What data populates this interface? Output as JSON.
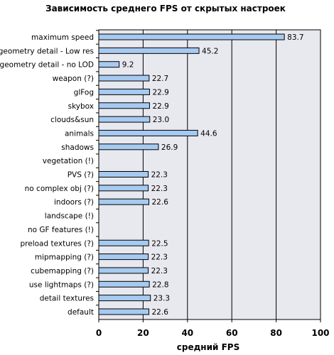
{
  "chart_data": {
    "type": "bar",
    "orientation": "horizontal",
    "title": "Зависимость среднего FPS от скрытых настроек",
    "xlabel": "средний FPS",
    "ylabel": "",
    "xlim": [
      0,
      100
    ],
    "x_ticks": [
      "0",
      "20",
      "40",
      "60",
      "80",
      "100"
    ],
    "grid": "vertical gridlines at major ticks",
    "legend": "none",
    "categories": [
      "maximum speed",
      "geometry detail - Low res",
      "geometry detail - no LOD",
      "weapon (?)",
      "glFog",
      "skybox",
      "clouds&sun",
      "animals",
      "shadows",
      "vegetation (!)",
      "PVS (?)",
      "no complex obj (?)",
      "indoors (?)",
      "landscape (!)",
      "no GF features (!)",
      "preload textures (?)",
      "mipmapping (?)",
      "cubemapping (?)",
      "use lightmaps (?)",
      "detail textures",
      "default"
    ],
    "values": [
      83.7,
      45.2,
      9.2,
      22.7,
      22.9,
      22.9,
      23.0,
      44.6,
      26.9,
      null,
      22.3,
      22.3,
      22.6,
      null,
      null,
      22.5,
      22.3,
      22.3,
      22.8,
      23.3,
      22.6
    ],
    "value_labels": [
      "83.7",
      "45.2",
      "9.2",
      "22.7",
      "22.9",
      "22.9",
      "23.0",
      "44.6",
      "26.9",
      "",
      "22.3",
      "22.3",
      "22.6",
      "",
      "",
      "22.5",
      "22.3",
      "22.3",
      "22.8",
      "23.3",
      "22.6"
    ],
    "colors": {
      "bar_fill": "#a6caf0",
      "bar_stroke": "#000000",
      "plot_bg": "#e8e8ef",
      "grid": "#000000"
    }
  }
}
